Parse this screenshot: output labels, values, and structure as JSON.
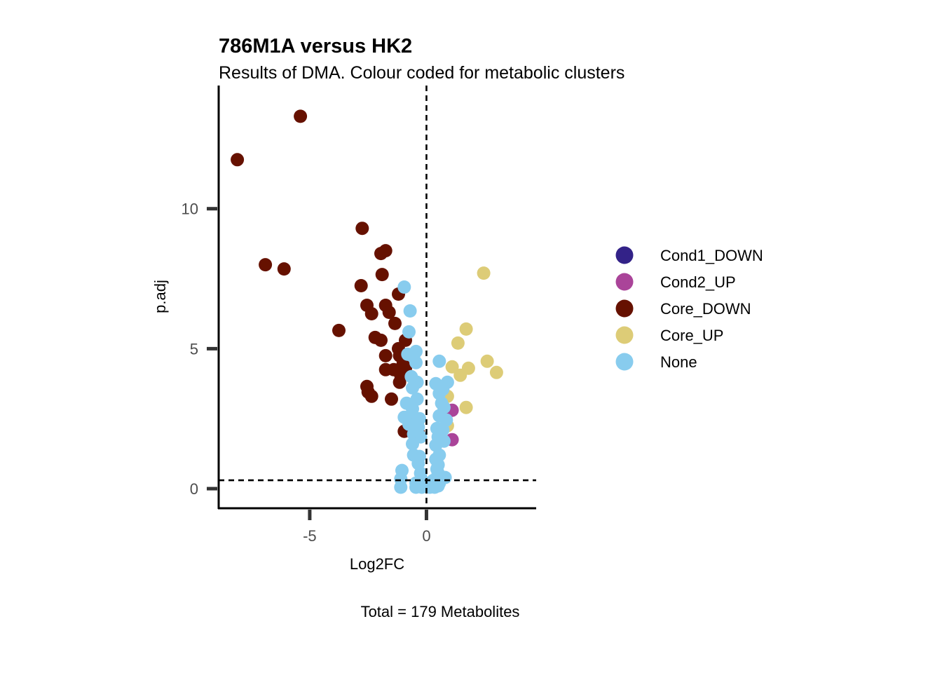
{
  "chart_data": {
    "type": "scatter",
    "title": "786M1A versus HK2",
    "subtitle": "Results of DMA. Colour coded for metabolic clusters",
    "xlabel": "Log2FC",
    "ylabel": "p.adj",
    "caption": "Total = 179 Metabolites",
    "xlim": [
      -8.9,
      4.7
    ],
    "ylim": [
      -0.7,
      14.4
    ],
    "x_ticks": [
      -5,
      0
    ],
    "x_tick_labels": [
      "-5",
      "0"
    ],
    "y_ticks": [
      0,
      5,
      10
    ],
    "y_tick_labels": [
      "0",
      "5",
      "10"
    ],
    "grid": false,
    "legend_position": "right",
    "reference_lines": [
      {
        "orientation": "vertical",
        "value": 0,
        "style": "dashed"
      },
      {
        "orientation": "horizontal",
        "value": 0.3,
        "style": "dashed"
      }
    ],
    "series": [
      {
        "name": "Cond1_DOWN",
        "color": "#332288",
        "points": []
      },
      {
        "name": "Cond2_UP",
        "color": "#AA4499",
        "points": [
          [
            1.1,
            2.8
          ],
          [
            1.1,
            1.75
          ]
        ]
      },
      {
        "name": "Core_DOWN",
        "color": "#661100",
        "points": [
          [
            -5.4,
            13.3
          ],
          [
            -8.1,
            11.75
          ],
          [
            -2.75,
            9.3
          ],
          [
            -1.75,
            8.5
          ],
          [
            -1.95,
            8.4
          ],
          [
            -6.9,
            8.0
          ],
          [
            -6.1,
            7.85
          ],
          [
            -1.9,
            7.65
          ],
          [
            -2.8,
            7.25
          ],
          [
            -1.2,
            6.95
          ],
          [
            -2.55,
            6.55
          ],
          [
            -1.75,
            6.55
          ],
          [
            -1.6,
            6.3
          ],
          [
            -2.35,
            6.25
          ],
          [
            -1.35,
            5.9
          ],
          [
            -3.75,
            5.65
          ],
          [
            -2.2,
            5.4
          ],
          [
            -1.95,
            5.3
          ],
          [
            -0.9,
            5.3
          ],
          [
            -1.2,
            5.0
          ],
          [
            -1.75,
            4.75
          ],
          [
            -1.15,
            4.75
          ],
          [
            -1.0,
            4.45
          ],
          [
            -0.9,
            4.3
          ],
          [
            -1.75,
            4.25
          ],
          [
            -1.4,
            4.25
          ],
          [
            -1.1,
            4.05
          ],
          [
            -1.15,
            3.8
          ],
          [
            -2.55,
            3.65
          ],
          [
            -2.5,
            3.45
          ],
          [
            -2.35,
            3.3
          ],
          [
            -1.5,
            3.2
          ],
          [
            -0.95,
            2.05
          ],
          [
            -0.35,
            2.0
          ]
        ]
      },
      {
        "name": "Core_UP",
        "color": "#DDCC77",
        "points": [
          [
            2.45,
            7.7
          ],
          [
            1.7,
            5.7
          ],
          [
            1.35,
            5.2
          ],
          [
            2.6,
            4.55
          ],
          [
            1.1,
            4.35
          ],
          [
            3.0,
            4.15
          ],
          [
            1.8,
            4.3
          ],
          [
            1.45,
            4.05
          ],
          [
            0.9,
            3.3
          ],
          [
            1.7,
            2.9
          ],
          [
            0.9,
            2.25
          ]
        ]
      },
      {
        "name": "None",
        "color": "#88CCEE",
        "points": [
          [
            -0.95,
            7.2
          ],
          [
            -0.7,
            6.35
          ],
          [
            -0.75,
            5.6
          ],
          [
            -0.45,
            4.9
          ],
          [
            -0.8,
            4.8
          ],
          [
            -0.55,
            4.7
          ],
          [
            -0.45,
            4.5
          ],
          [
            0.55,
            4.55
          ],
          [
            -0.65,
            4.0
          ],
          [
            -0.4,
            3.8
          ],
          [
            -0.6,
            3.6
          ],
          [
            0.4,
            3.75
          ],
          [
            0.9,
            3.8
          ],
          [
            0.7,
            3.55
          ],
          [
            0.55,
            3.4
          ],
          [
            -0.4,
            3.2
          ],
          [
            -0.85,
            3.05
          ],
          [
            0.65,
            3.05
          ],
          [
            0.75,
            2.9
          ],
          [
            -0.6,
            2.85
          ],
          [
            -0.95,
            2.55
          ],
          [
            -0.55,
            2.55
          ],
          [
            -0.3,
            2.5
          ],
          [
            0.55,
            2.6
          ],
          [
            0.85,
            2.45
          ],
          [
            -0.75,
            2.3
          ],
          [
            -0.35,
            2.2
          ],
          [
            0.45,
            2.15
          ],
          [
            0.7,
            2.1
          ],
          [
            -0.55,
            1.95
          ],
          [
            -0.25,
            1.85
          ],
          [
            0.5,
            1.85
          ],
          [
            0.75,
            1.7
          ],
          [
            -0.6,
            1.6
          ],
          [
            0.4,
            1.55
          ],
          [
            -0.55,
            1.2
          ],
          [
            -0.3,
            1.15
          ],
          [
            0.55,
            1.2
          ],
          [
            0.4,
            1.05
          ],
          [
            -0.35,
            0.9
          ],
          [
            0.5,
            0.85
          ],
          [
            0.45,
            0.7
          ],
          [
            -1.05,
            0.65
          ],
          [
            -0.25,
            0.55
          ],
          [
            0.5,
            0.55
          ],
          [
            -1.1,
            0.35
          ],
          [
            -0.2,
            0.3
          ],
          [
            0.3,
            0.3
          ],
          [
            0.8,
            0.4
          ],
          [
            -0.45,
            0.2
          ],
          [
            0.1,
            0.15
          ],
          [
            0.55,
            0.2
          ],
          [
            -1.1,
            0.05
          ],
          [
            -0.45,
            0.05
          ],
          [
            -0.2,
            0.05
          ],
          [
            0.15,
            0.05
          ],
          [
            0.35,
            0.05
          ],
          [
            0.5,
            0.1
          ]
        ]
      }
    ]
  }
}
